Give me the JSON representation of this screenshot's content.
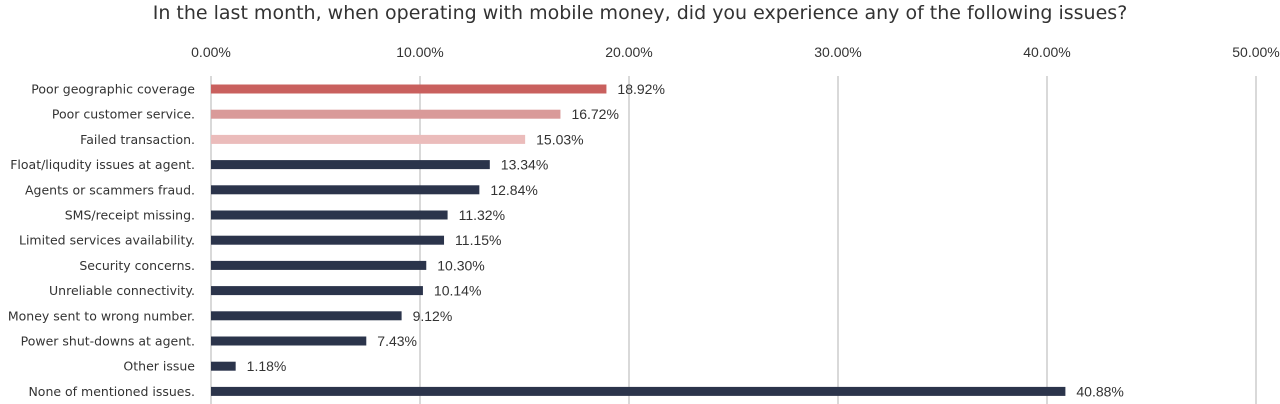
{
  "chart_data": {
    "type": "bar",
    "orientation": "horizontal",
    "title": "In the last month, when operating with mobile money, did you experience any of the following issues?",
    "xlim": [
      0,
      50
    ],
    "tick_values": [
      0,
      10,
      20,
      30,
      40,
      50
    ],
    "tick_labels": [
      "0.00%",
      "10.00%",
      "20.00%",
      "30.00%",
      "40.00%",
      "50.00%"
    ],
    "axis_position": "top",
    "grid": true,
    "categories": [
      "Poor geographic coverage",
      "Poor customer service.",
      "Failed transaction.",
      "Float/liqudity issues at agent.",
      "Agents or scammers fraud.",
      "SMS/receipt missing.",
      "Limited services availability.",
      "Security concerns.",
      "Unreliable connectivity.",
      "Money sent to wrong number.",
      "Power shut-downs at agent.",
      "Other issue",
      "None of mentioned issues."
    ],
    "values": [
      18.92,
      16.72,
      15.03,
      13.34,
      12.84,
      11.32,
      11.15,
      10.3,
      10.14,
      9.12,
      7.43,
      1.18,
      40.88
    ],
    "value_labels": [
      "18.92%",
      "16.72%",
      "15.03%",
      "13.34%",
      "12.84%",
      "11.32%",
      "11.15%",
      "10.30%",
      "10.14%",
      "9.12%",
      "7.43%",
      "1.18%",
      "40.88%"
    ],
    "colors": [
      "#c9605e",
      "#d99a99",
      "#ebbcbb",
      "#2b344b",
      "#2b344b",
      "#2b344b",
      "#2b344b",
      "#2b344b",
      "#2b344b",
      "#2b344b",
      "#2b344b",
      "#2b344b",
      "#2b344b"
    ]
  }
}
